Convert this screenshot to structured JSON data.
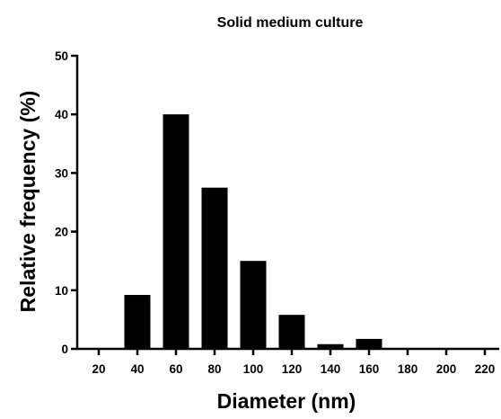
{
  "chart_data": {
    "type": "bar",
    "title": "Solid medium culture",
    "xlabel": "Diameter (nm)",
    "ylabel": "Relative frequency (%)",
    "categories": [
      "20",
      "40",
      "60",
      "80",
      "100",
      "120",
      "140",
      "160",
      "180",
      "200",
      "220"
    ],
    "values": [
      0,
      9.2,
      40,
      27.5,
      15,
      5.8,
      0.8,
      1.7,
      0,
      0,
      0
    ],
    "ylim": [
      0,
      50
    ],
    "yticks": [
      "0",
      "10",
      "20",
      "30",
      "40",
      "50"
    ],
    "grid": false,
    "legend": "none",
    "bar_color": "#000000"
  }
}
